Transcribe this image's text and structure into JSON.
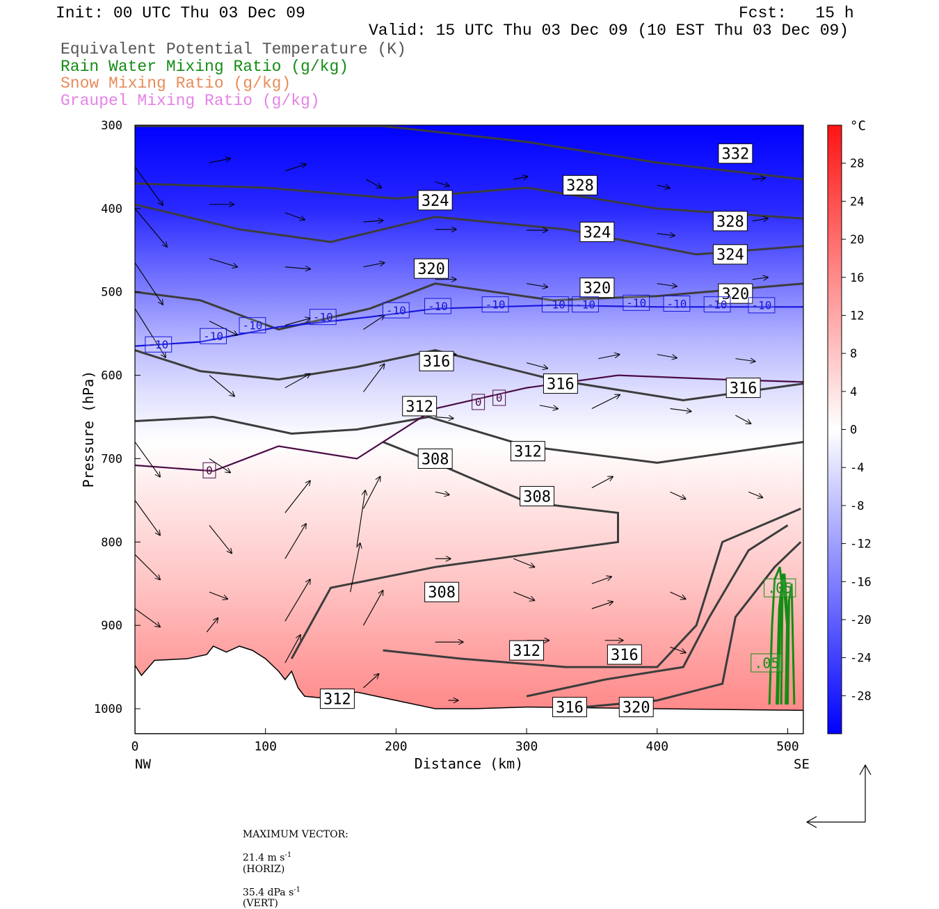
{
  "header": {
    "init": "Init: 00 UTC Thu 03 Dec 09",
    "fcst": "Fcst:   15 h",
    "valid": "Valid: 15 UTC Thu 03 Dec 09 (10 EST Thu 03 Dec 09)"
  },
  "legend_titles": [
    {
      "text": "Equivalent Potential Temperature (K)",
      "color": "#555555"
    },
    {
      "text": "Rain Water Mixing Ratio (g/kg)",
      "color": "#148c14"
    },
    {
      "text": "Snow Mixing Ratio (g/kg)",
      "color": "#e88c5a"
    },
    {
      "text": "Graupel Mixing Ratio (g/kg)",
      "color": "#e682e6"
    }
  ],
  "footer": {
    "max_vector_label": "MAXIMUM VECTOR:",
    "horiz_value": "21.4 m s",
    "horiz_exp": "-1",
    "horiz_unit": "(HORIZ)",
    "vert_value": "35.4 dPa s",
    "vert_exp": "-1",
    "vert_unit": "(VERT)"
  },
  "chart_data": {
    "type": "heatmap",
    "xlabel": "Distance (km)",
    "ylabel": "Pressure (hPa)",
    "xlim": [
      0,
      512
    ],
    "ylim": [
      300,
      1030
    ],
    "x_ticks": [
      0,
      100,
      200,
      300,
      400,
      500
    ],
    "y_ticks": [
      300,
      400,
      500,
      600,
      700,
      800,
      900,
      1000
    ],
    "x_end_labels": {
      "left": "NW",
      "right": "SE"
    },
    "colorbar": {
      "unit": "°C",
      "ticks": [
        28,
        24,
        20,
        16,
        12,
        8,
        4,
        0,
        -4,
        -8,
        -12,
        -16,
        -20,
        -24,
        -28
      ],
      "range": [
        -32,
        32
      ]
    },
    "temperature_field": [
      {
        "p": 300,
        "t": -36
      },
      {
        "p": 400,
        "t": -27
      },
      {
        "p": 500,
        "t": -16
      },
      {
        "p": 560,
        "t": -9
      },
      {
        "p": 620,
        "t": -4
      },
      {
        "p": 680,
        "t": 0
      },
      {
        "p": 760,
        "t": 4
      },
      {
        "p": 850,
        "t": 8
      },
      {
        "p": 920,
        "t": 12
      },
      {
        "p": 1000,
        "t": 16
      }
    ],
    "contours": {
      "theta_e": [
        {
          "label": "332",
          "points": [
            [
              0,
              301
            ],
            [
              60,
              301
            ],
            [
              190,
              301
            ],
            [
              300,
              320
            ],
            [
              400,
              345
            ],
            [
              512,
              365
            ]
          ],
          "labels_at": [
            [
              460,
              334
            ]
          ]
        },
        {
          "label": "328",
          "points": [
            [
              0,
              370
            ],
            [
              100,
              375
            ],
            [
              200,
              388
            ],
            [
              300,
              375
            ],
            [
              400,
              400
            ],
            [
              512,
              412
            ]
          ],
          "labels_at": [
            [
              341,
              372
            ],
            [
              456,
              415
            ]
          ]
        },
        {
          "label": "324",
          "points": [
            [
              0,
              395
            ],
            [
              80,
              425
            ],
            [
              150,
              440
            ],
            [
              230,
              410
            ],
            [
              330,
              425
            ],
            [
              430,
              455
            ],
            [
              512,
              445
            ]
          ],
          "labels_at": [
            [
              230,
              390
            ],
            [
              354,
              428
            ],
            [
              456,
              455
            ]
          ]
        },
        {
          "label": "320",
          "points": [
            [
              0,
              500
            ],
            [
              50,
              510
            ],
            [
              110,
              545
            ],
            [
              180,
              520
            ],
            [
              230,
              490
            ],
            [
              320,
              510
            ],
            [
              400,
              505
            ],
            [
              512,
              490
            ]
          ],
          "labels_at": [
            [
              227,
              472
            ],
            [
              354,
              495
            ],
            [
              460,
              502
            ]
          ]
        },
        {
          "label": "316",
          "points": [
            [
              0,
              570
            ],
            [
              50,
              595
            ],
            [
              110,
              605
            ],
            [
              170,
              590
            ],
            [
              230,
              570
            ],
            [
              320,
              605
            ],
            [
              420,
              630
            ],
            [
              512,
              610
            ]
          ],
          "labels_at": [
            [
              231,
              583
            ],
            [
              326,
              610
            ],
            [
              466,
              615
            ]
          ]
        },
        {
          "label": "312",
          "points": [
            [
              0,
              655
            ],
            [
              60,
              650
            ],
            [
              120,
              670
            ],
            [
              170,
              665
            ],
            [
              225,
              650
            ],
            [
              300,
              685
            ],
            [
              400,
              705
            ],
            [
              512,
              680
            ]
          ],
          "labels_at": [
            [
              218,
              637
            ],
            [
              301,
              691
            ]
          ]
        },
        {
          "label": "308",
          "points": [
            [
              190,
              680
            ],
            [
              230,
              705
            ],
            [
              300,
              752
            ],
            [
              370,
              765
            ],
            [
              370,
              800
            ],
            [
              300,
              815
            ],
            [
              230,
              830
            ],
            [
              150,
              855
            ],
            [
              120,
              940
            ]
          ],
          "labels_at": [
            [
              230,
              700
            ],
            [
              308,
              745
            ],
            [
              235,
              860
            ]
          ]
        },
        {
          "label": "312",
          "points": [
            [
              190,
              930
            ],
            [
              250,
              940
            ],
            [
              330,
              950
            ],
            [
              400,
              950
            ],
            [
              430,
              900
            ],
            [
              450,
              800
            ],
            [
              510,
              760
            ]
          ],
          "labels_at": [
            [
              300,
              930
            ],
            [
              155,
              988
            ]
          ]
        },
        {
          "label": "316",
          "points": [
            [
              300,
              985
            ],
            [
              360,
              965
            ],
            [
              420,
              950
            ],
            [
              440,
              890
            ],
            [
              470,
              810
            ],
            [
              500,
              780
            ]
          ],
          "labels_at": [
            [
              333,
              998
            ],
            [
              375,
              935
            ]
          ]
        },
        {
          "label": "320",
          "points": [
            [
              330,
              1000
            ],
            [
              400,
              990
            ],
            [
              450,
              970
            ],
            [
              460,
              890
            ],
            [
              490,
              830
            ],
            [
              510,
              800
            ]
          ],
          "labels_at": [
            [
              384,
              998
            ]
          ]
        }
      ],
      "isotherms": [
        {
          "label": "-10",
          "points": [
            [
              0,
              565
            ],
            [
              50,
              560
            ],
            [
              110,
              542
            ],
            [
              180,
              530
            ],
            [
              230,
              520
            ],
            [
              320,
              516
            ],
            [
              400,
              518
            ],
            [
              512,
              518
            ]
          ],
          "labels_at": [
            [
              18,
              563
            ],
            [
              60,
              553
            ],
            [
              90,
              540
            ],
            [
              144,
              530
            ],
            [
              200,
              522
            ],
            [
              232,
              517
            ],
            [
              276,
              515
            ],
            [
              322,
              515
            ],
            [
              345,
              515
            ],
            [
              384,
              513
            ],
            [
              415,
              514
            ],
            [
              446,
              515
            ],
            [
              480,
              516
            ]
          ]
        },
        {
          "label": "0",
          "points": [
            [
              0,
              708
            ],
            [
              60,
              715
            ],
            [
              110,
              685
            ],
            [
              170,
              700
            ],
            [
              230,
              640
            ],
            [
              300,
              615
            ],
            [
              370,
              600
            ],
            [
              450,
              605
            ],
            [
              512,
              608
            ]
          ],
          "labels_at": [
            [
              57,
              714
            ],
            [
              263,
              632
            ],
            [
              279,
              627
            ]
          ]
        }
      ],
      "rain_water_labels": [
        {
          "label": ".05",
          "at": [
            494,
            855
          ]
        },
        {
          "label": ".05",
          "at": [
            484,
            945
          ]
        }
      ]
    },
    "wind_vectors_note": "horizontal + vertical circulation vectors"
  }
}
